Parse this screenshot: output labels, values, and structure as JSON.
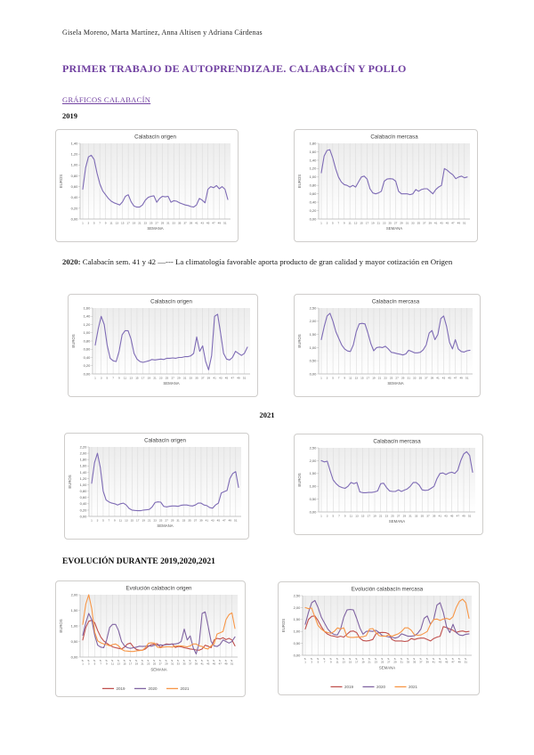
{
  "document": {
    "authors": "Gisela Moreno, Marta Martínez, Anna Altisen y Adriana Cárdenas",
    "title": "PRIMER TRABAJO DE AUTOPRENDIZAJE. CALABACÍN Y POLLO",
    "section_link": "GRÁFICOS CALABACÍN",
    "label_2019": "2019",
    "note_2020": {
      "prefix": "2020:",
      "text": " Calabacín sem. 41 y 42 —--- La climatología favorable aporta producto de gran calidad y mayor cotización en Origen"
    },
    "label_2021": "2021",
    "evolution_heading": "EVOLUCIÓN DURANTE 2019,2020,2021"
  },
  "colors": {
    "heading_purple": "#7141a1",
    "line_purple": "#7e6bb5",
    "series_2019": "#c0504d",
    "series_2020": "#8064a2",
    "series_2021": "#f79646",
    "chart_border": "#cfcdcb",
    "tick_text": "#595959"
  },
  "chart_data": [
    {
      "id": "origen-2019",
      "type": "line",
      "title": "Calabacín origen",
      "xlabel": "SEMANA",
      "ylabel": "EUROS",
      "ylim": [
        0,
        1.4
      ],
      "ytick_step": 0.2,
      "x_range": [
        1,
        52
      ],
      "xticks": [
        1,
        3,
        5,
        7,
        9,
        11,
        13,
        15,
        17,
        19,
        21,
        23,
        25,
        27,
        29,
        31,
        33,
        35,
        37,
        39,
        41,
        43,
        45,
        47,
        49,
        51
      ],
      "grid": "vertical",
      "legend_position": null,
      "xtick_prefix": "",
      "series": [
        {
          "name": "2019",
          "color": "#7e6bb5",
          "values": [
            0.55,
            0.95,
            1.15,
            1.18,
            1.1,
            0.85,
            0.65,
            0.52,
            0.45,
            0.38,
            0.33,
            0.3,
            0.28,
            0.26,
            0.32,
            0.42,
            0.45,
            0.32,
            0.24,
            0.22,
            0.22,
            0.26,
            0.35,
            0.4,
            0.42,
            0.43,
            0.31,
            0.38,
            0.42,
            0.41,
            0.42,
            0.31,
            0.34,
            0.33,
            0.3,
            0.28,
            0.26,
            0.25,
            0.23,
            0.22,
            0.26,
            0.38,
            0.35,
            0.3,
            0.55,
            0.6,
            0.58,
            0.62,
            0.56,
            0.6,
            0.55,
            0.36
          ]
        }
      ]
    },
    {
      "id": "mercasa-2019",
      "type": "line",
      "title": "Calabacín mercasa",
      "xlabel": "SEMANA",
      "ylabel": "EUROS",
      "ylim": [
        0,
        1.8
      ],
      "ytick_step": 0.2,
      "x_range": [
        1,
        52
      ],
      "xticks": [
        1,
        3,
        5,
        7,
        9,
        11,
        13,
        15,
        17,
        19,
        21,
        23,
        25,
        27,
        29,
        31,
        33,
        35,
        37,
        39,
        41,
        43,
        45,
        47,
        49,
        51
      ],
      "grid": "vertical",
      "legend_position": null,
      "xtick_prefix": "",
      "series": [
        {
          "name": "2019",
          "color": "#7e6bb5",
          "values": [
            1.1,
            1.5,
            1.63,
            1.65,
            1.45,
            1.2,
            1.0,
            0.88,
            0.82,
            0.8,
            0.76,
            0.8,
            0.76,
            0.88,
            1.0,
            1.02,
            0.95,
            0.72,
            0.62,
            0.6,
            0.62,
            0.66,
            0.9,
            0.95,
            0.96,
            0.95,
            0.9,
            0.66,
            0.6,
            0.6,
            0.6,
            0.58,
            0.6,
            0.7,
            0.66,
            0.7,
            0.72,
            0.72,
            0.66,
            0.6,
            0.7,
            0.76,
            0.8,
            1.2,
            1.16,
            1.1,
            1.05,
            0.96,
            1.0,
            1.02,
            0.98,
            1.0
          ]
        }
      ]
    },
    {
      "id": "origen-2020",
      "type": "line",
      "title": "Calabacín origen",
      "xlabel": "SEMANA",
      "ylabel": "EUROS",
      "ylim": [
        0,
        1.6
      ],
      "ytick_step": 0.2,
      "x_range": [
        1,
        52
      ],
      "xticks": [
        1,
        3,
        5,
        7,
        9,
        11,
        13,
        15,
        17,
        19,
        21,
        23,
        25,
        27,
        29,
        31,
        33,
        35,
        37,
        39,
        41,
        43,
        45,
        47,
        49,
        51
      ],
      "grid": "vertical",
      "legend_position": null,
      "xtick_prefix": "",
      "series": [
        {
          "name": "2020",
          "color": "#7e6bb5",
          "values": [
            0.7,
            1.1,
            1.4,
            1.2,
            0.7,
            0.38,
            0.32,
            0.3,
            0.55,
            0.95,
            1.05,
            1.05,
            0.85,
            0.5,
            0.36,
            0.3,
            0.28,
            0.3,
            0.32,
            0.35,
            0.34,
            0.35,
            0.36,
            0.35,
            0.38,
            0.38,
            0.39,
            0.38,
            0.4,
            0.4,
            0.42,
            0.42,
            0.44,
            0.5,
            0.9,
            0.55,
            0.68,
            0.3,
            0.1,
            0.45,
            1.4,
            1.45,
            1.0,
            0.5,
            0.36,
            0.34,
            0.4,
            0.55,
            0.5,
            0.45,
            0.5,
            0.65
          ]
        }
      ]
    },
    {
      "id": "mercasa-2020",
      "type": "line",
      "title": "Calabacín mercasa",
      "xlabel": "SEMANA",
      "ylabel": "EUROS",
      "ylim": [
        0,
        2.5
      ],
      "ytick_step": 0.5,
      "x_range": [
        1,
        52
      ],
      "xticks": [
        1,
        3,
        5,
        7,
        9,
        11,
        13,
        15,
        17,
        19,
        21,
        23,
        25,
        27,
        29,
        31,
        33,
        35,
        37,
        39,
        41,
        43,
        45,
        47,
        49,
        51
      ],
      "grid": "vertical",
      "legend_position": null,
      "xtick_prefix": "",
      "series": [
        {
          "name": "2020",
          "color": "#7e6bb5",
          "values": [
            1.3,
            1.8,
            2.2,
            2.3,
            2.0,
            1.6,
            1.35,
            1.1,
            0.95,
            0.87,
            0.85,
            1.1,
            1.6,
            1.9,
            1.92,
            1.9,
            1.55,
            1.15,
            0.88,
            1.0,
            1.02,
            1.0,
            1.05,
            0.95,
            0.82,
            0.8,
            0.77,
            0.75,
            0.72,
            0.76,
            0.9,
            0.85,
            0.8,
            0.8,
            0.82,
            0.92,
            1.1,
            1.55,
            1.65,
            1.3,
            1.5,
            2.1,
            2.2,
            1.8,
            1.2,
            0.95,
            1.3,
            0.95,
            0.85,
            0.83,
            0.88,
            0.9
          ]
        }
      ]
    },
    {
      "id": "origen-2021",
      "type": "line",
      "title": "Calabacín origen",
      "xlabel": "SEMANA",
      "ylabel": "EUROS",
      "ylim": [
        0,
        2.2
      ],
      "ytick_step": 0.2,
      "x_range": [
        1,
        52
      ],
      "xticks": [
        1,
        3,
        5,
        7,
        9,
        11,
        13,
        15,
        17,
        19,
        21,
        23,
        25,
        27,
        29,
        31,
        33,
        35,
        37,
        39,
        41,
        43,
        45,
        47,
        49,
        51
      ],
      "grid": "vertical",
      "legend_position": null,
      "xtick_prefix": "",
      "series": [
        {
          "name": "2021",
          "color": "#7e6bb5",
          "values": [
            1.05,
            1.7,
            2.0,
            1.55,
            0.8,
            0.52,
            0.46,
            0.42,
            0.4,
            0.36,
            0.4,
            0.42,
            0.36,
            0.25,
            0.2,
            0.19,
            0.18,
            0.18,
            0.2,
            0.21,
            0.22,
            0.3,
            0.44,
            0.46,
            0.45,
            0.32,
            0.3,
            0.32,
            0.33,
            0.33,
            0.32,
            0.35,
            0.36,
            0.36,
            0.34,
            0.33,
            0.36,
            0.42,
            0.42,
            0.36,
            0.34,
            0.28,
            0.26,
            0.36,
            0.42,
            0.74,
            0.78,
            0.82,
            1.2,
            1.36,
            1.42,
            0.92
          ]
        }
      ]
    },
    {
      "id": "mercasa-2021",
      "type": "line",
      "title": "Calabacín mercasa",
      "xlabel": "SEMANA",
      "ylabel": "EUROS",
      "ylim": [
        0,
        2.5
      ],
      "ytick_step": 0.5,
      "x_range": [
        1,
        52
      ],
      "xticks": [
        1,
        3,
        5,
        7,
        9,
        11,
        13,
        15,
        17,
        19,
        21,
        23,
        25,
        27,
        29,
        31,
        33,
        35,
        37,
        39,
        41,
        43,
        45,
        47,
        49,
        51
      ],
      "grid": "vertical",
      "legend_position": null,
      "xtick_prefix": "",
      "series": [
        {
          "name": "2021",
          "color": "#7e6bb5",
          "values": [
            2.0,
            1.95,
            1.98,
            1.6,
            1.25,
            1.1,
            1.0,
            0.95,
            0.92,
            1.0,
            1.15,
            1.1,
            1.15,
            0.78,
            0.75,
            0.75,
            0.76,
            0.76,
            0.78,
            0.82,
            1.1,
            1.12,
            0.95,
            0.82,
            0.8,
            0.8,
            0.86,
            0.8,
            0.85,
            0.9,
            1.0,
            1.15,
            1.15,
            1.05,
            0.86,
            0.84,
            0.85,
            0.92,
            1.0,
            1.3,
            1.5,
            1.52,
            1.46,
            1.52,
            1.55,
            1.5,
            1.62,
            2.0,
            2.26,
            2.35,
            2.2,
            1.55
          ]
        }
      ]
    },
    {
      "id": "evolucion-origen",
      "type": "line",
      "title": "Evolución calabacín origen",
      "xlabel": "SEMANA",
      "ylabel": "EUROS",
      "ylim": [
        0,
        2.0
      ],
      "ytick_step": 0.5,
      "x_range": [
        1,
        52
      ],
      "xticks": [
        1,
        3,
        5,
        7,
        9,
        11,
        13,
        15,
        17,
        19,
        21,
        23,
        25,
        27,
        29,
        31,
        33,
        35,
        37,
        39,
        41,
        43,
        45,
        47,
        49,
        51
      ],
      "grid": "vertical",
      "legend_position": "bottom",
      "xtick_prefix": "S.",
      "series": [
        {
          "name": "2019",
          "color": "#c0504d",
          "values": [
            0.55,
            0.95,
            1.15,
            1.18,
            1.1,
            0.85,
            0.65,
            0.52,
            0.45,
            0.38,
            0.33,
            0.3,
            0.28,
            0.26,
            0.32,
            0.42,
            0.45,
            0.32,
            0.24,
            0.22,
            0.22,
            0.26,
            0.35,
            0.4,
            0.42,
            0.43,
            0.31,
            0.38,
            0.42,
            0.41,
            0.42,
            0.31,
            0.34,
            0.33,
            0.3,
            0.28,
            0.26,
            0.25,
            0.23,
            0.22,
            0.26,
            0.38,
            0.35,
            0.3,
            0.55,
            0.6,
            0.58,
            0.62,
            0.56,
            0.6,
            0.55,
            0.36
          ]
        },
        {
          "name": "2020",
          "color": "#8064a2",
          "values": [
            0.7,
            1.1,
            1.4,
            1.2,
            0.7,
            0.38,
            0.32,
            0.3,
            0.55,
            0.95,
            1.05,
            1.05,
            0.85,
            0.5,
            0.36,
            0.3,
            0.28,
            0.3,
            0.32,
            0.35,
            0.34,
            0.35,
            0.36,
            0.35,
            0.38,
            0.38,
            0.39,
            0.38,
            0.4,
            0.4,
            0.42,
            0.42,
            0.44,
            0.5,
            0.9,
            0.55,
            0.68,
            0.3,
            0.1,
            0.45,
            1.4,
            1.45,
            1.0,
            0.5,
            0.36,
            0.34,
            0.4,
            0.55,
            0.5,
            0.45,
            0.5,
            0.65
          ]
        },
        {
          "name": "2021",
          "color": "#f79646",
          "values": [
            1.05,
            1.7,
            2.0,
            1.55,
            0.8,
            0.52,
            0.46,
            0.42,
            0.4,
            0.36,
            0.4,
            0.42,
            0.36,
            0.25,
            0.2,
            0.19,
            0.18,
            0.18,
            0.2,
            0.21,
            0.22,
            0.3,
            0.44,
            0.46,
            0.45,
            0.32,
            0.3,
            0.32,
            0.33,
            0.33,
            0.32,
            0.35,
            0.36,
            0.36,
            0.34,
            0.33,
            0.36,
            0.42,
            0.42,
            0.36,
            0.34,
            0.28,
            0.26,
            0.36,
            0.42,
            0.74,
            0.78,
            0.82,
            1.2,
            1.36,
            1.42,
            0.92
          ]
        }
      ]
    },
    {
      "id": "evolucion-mercasa",
      "type": "line",
      "title": "Evolución calabacín mercasa",
      "xlabel": "SEMANA",
      "ylabel": "EUROS",
      "ylim": [
        0,
        2.5
      ],
      "ytick_step": 0.5,
      "x_range": [
        1,
        52
      ],
      "xticks": [
        1,
        3,
        5,
        7,
        9,
        11,
        13,
        15,
        17,
        19,
        21,
        23,
        25,
        27,
        29,
        31,
        33,
        35,
        37,
        39,
        41,
        43,
        45,
        47,
        49,
        51
      ],
      "grid": "vertical",
      "legend_position": "bottom",
      "xtick_prefix": "S.",
      "series": [
        {
          "name": "2019",
          "color": "#c0504d",
          "values": [
            1.1,
            1.5,
            1.63,
            1.65,
            1.45,
            1.2,
            1.0,
            0.88,
            0.82,
            0.8,
            0.76,
            0.8,
            0.76,
            0.88,
            1.0,
            1.02,
            0.95,
            0.72,
            0.62,
            0.6,
            0.62,
            0.66,
            0.9,
            0.95,
            0.96,
            0.95,
            0.9,
            0.66,
            0.6,
            0.6,
            0.6,
            0.58,
            0.6,
            0.7,
            0.66,
            0.7,
            0.72,
            0.72,
            0.66,
            0.6,
            0.7,
            0.76,
            0.8,
            1.2,
            1.16,
            1.1,
            1.05,
            0.96,
            1.0,
            1.02,
            0.98,
            1.0
          ]
        },
        {
          "name": "2020",
          "color": "#8064a2",
          "values": [
            1.3,
            1.8,
            2.2,
            2.3,
            2.0,
            1.6,
            1.35,
            1.1,
            0.95,
            0.87,
            0.85,
            1.1,
            1.6,
            1.9,
            1.92,
            1.9,
            1.55,
            1.15,
            0.88,
            1.0,
            1.02,
            1.0,
            1.05,
            0.95,
            0.82,
            0.8,
            0.77,
            0.75,
            0.72,
            0.76,
            0.9,
            0.85,
            0.8,
            0.8,
            0.82,
            0.92,
            1.1,
            1.55,
            1.65,
            1.3,
            1.5,
            2.1,
            2.2,
            1.8,
            1.2,
            0.95,
            1.3,
            0.95,
            0.85,
            0.83,
            0.88,
            0.9
          ]
        },
        {
          "name": "2021",
          "color": "#f79646",
          "values": [
            2.0,
            1.95,
            1.98,
            1.6,
            1.25,
            1.1,
            1.0,
            0.95,
            0.92,
            1.0,
            1.15,
            1.1,
            1.15,
            0.78,
            0.75,
            0.75,
            0.76,
            0.76,
            0.78,
            0.82,
            1.1,
            1.12,
            0.95,
            0.82,
            0.8,
            0.8,
            0.86,
            0.8,
            0.85,
            0.9,
            1.0,
            1.15,
            1.15,
            1.05,
            0.86,
            0.84,
            0.85,
            0.92,
            1.0,
            1.3,
            1.5,
            1.52,
            1.46,
            1.52,
            1.55,
            1.5,
            1.62,
            2.0,
            2.26,
            2.35,
            2.2,
            1.55
          ]
        }
      ]
    }
  ]
}
